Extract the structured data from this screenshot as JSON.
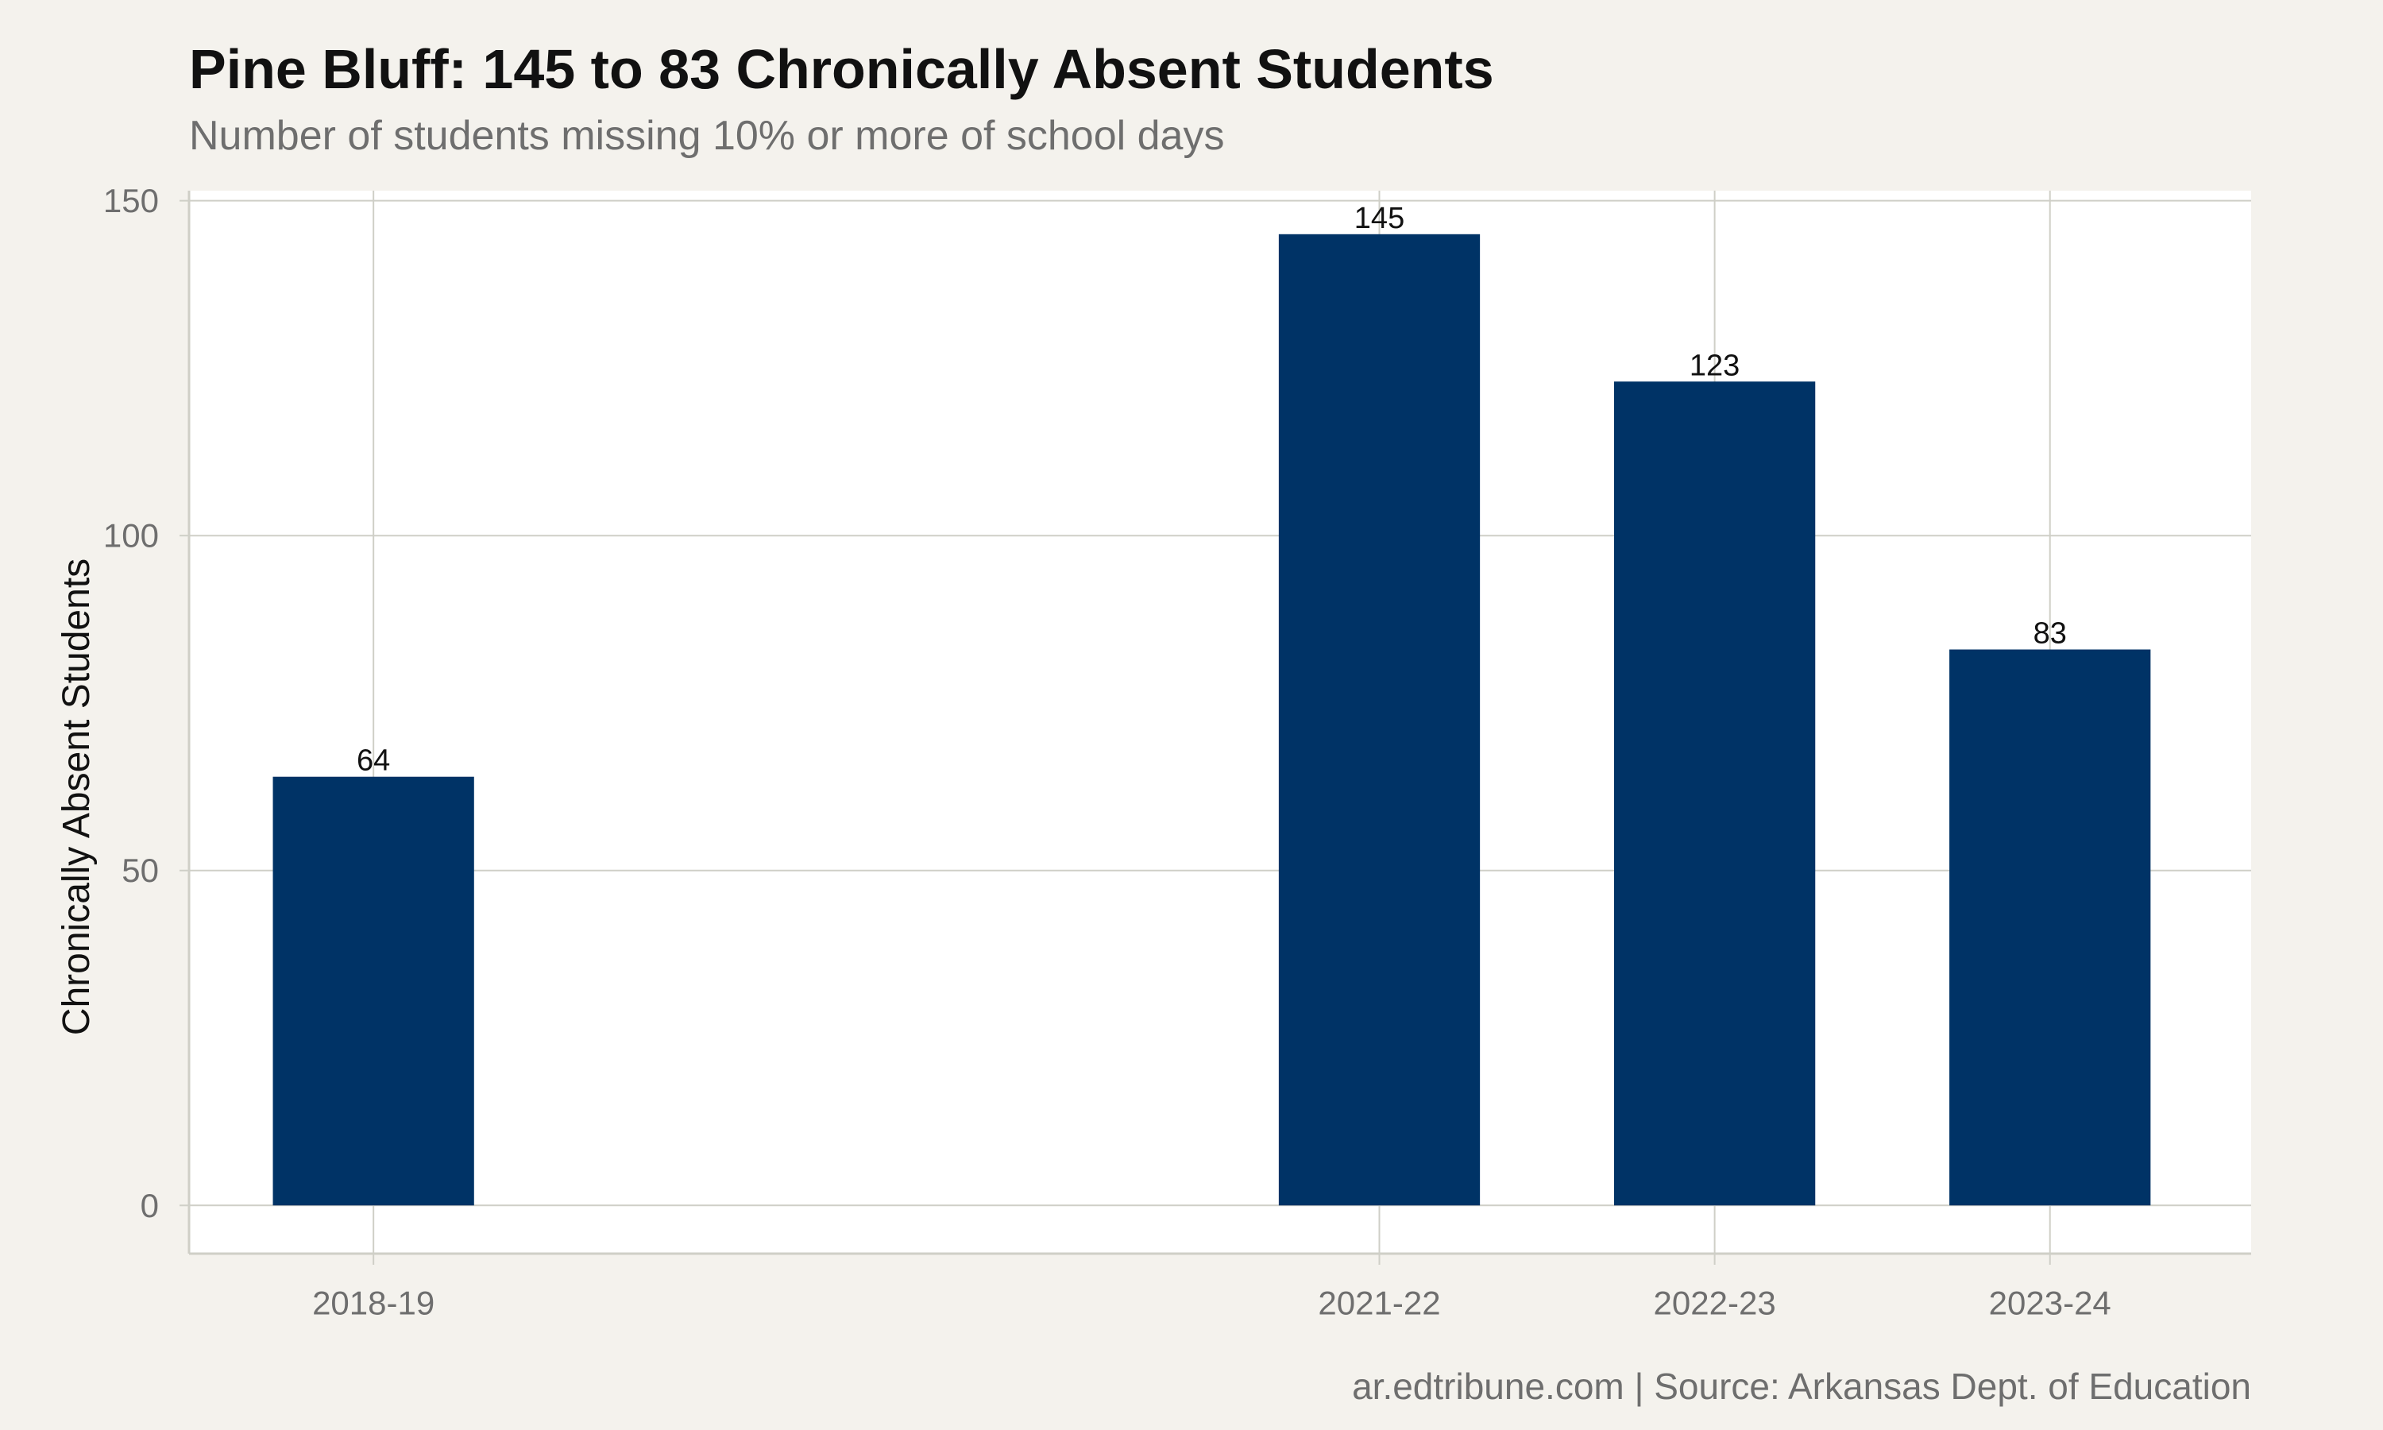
{
  "chart_data": {
    "type": "bar",
    "title": "Pine Bluff: 145 to 83 Chronically Absent Students",
    "subtitle": "Number of students missing 10% or more of school days",
    "caption": "ar.edtribune.com | Source: Arkansas Dept. of Education",
    "xlabel": "",
    "ylabel": "Chronically Absent Students",
    "categories": [
      "2018-19",
      "2021-22",
      "2022-23",
      "2023-24"
    ],
    "x": [
      2019,
      2022,
      2023,
      2024
    ],
    "xlim": [
      2018.45,
      2024.6
    ],
    "values": [
      64,
      145,
      123,
      83
    ],
    "value_labels": [
      "64",
      "145",
      "123",
      "83"
    ],
    "ylim": [
      -7.2,
      151.5
    ],
    "yticks": [
      0,
      50,
      100,
      150
    ],
    "ytick_labels": [
      "0",
      "50",
      "100",
      "150"
    ],
    "grid": true,
    "legend": "none",
    "colors": {
      "bar": "#003366",
      "background": "#f4f2ed",
      "panel": "#ffffff",
      "grid": "#cfcfc7",
      "axis_text": "#6e6e6e",
      "label_text": "#111111"
    }
  }
}
